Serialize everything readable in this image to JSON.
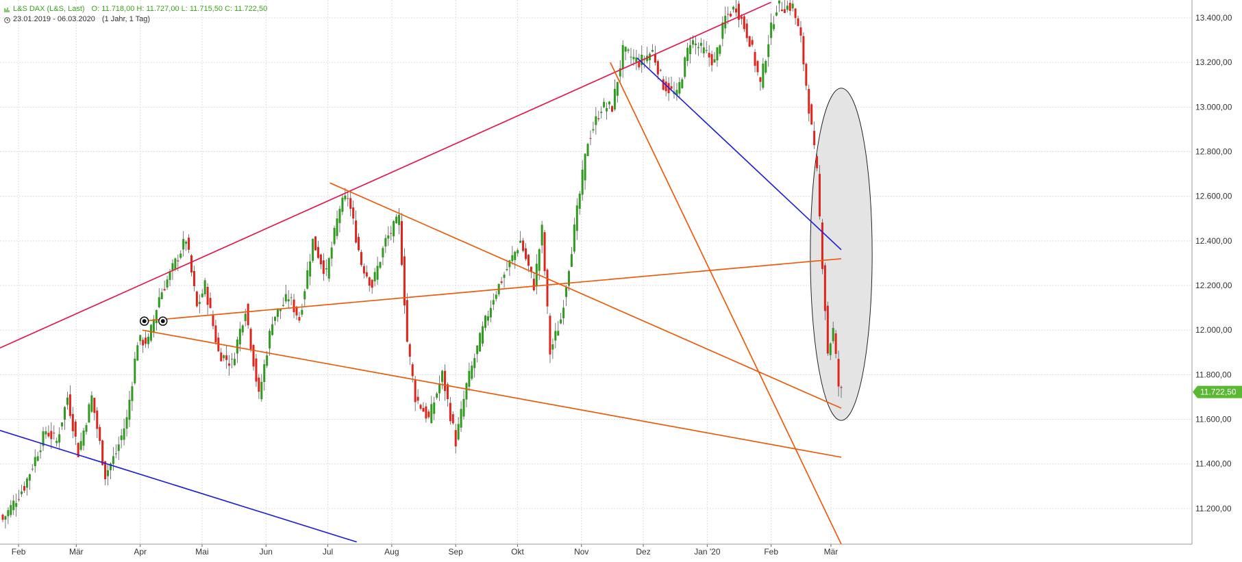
{
  "header": {
    "symbol": "L&S DAX (L&S, Last)",
    "ohlc": "O: 11.718,00  H: 11.727,00  L: 11.715,50  C: 11.722,50",
    "range": "23.01.2019 - 06.03.2020",
    "period": "(1 Jahr, 1 Tag)"
  },
  "chart_data": {
    "type": "candlestick",
    "x_tick_labels": [
      "Feb",
      "Mär",
      "Apr",
      "Mai",
      "Jun",
      "Jul",
      "Aug",
      "Sep",
      "Okt",
      "Nov",
      "Dez",
      "Jan '20",
      "Feb",
      "Mär"
    ],
    "y_ticks": [
      11200,
      11400,
      11600,
      11800,
      12000,
      12200,
      12400,
      12600,
      12800,
      13000,
      13200,
      13400
    ],
    "y_tick_labels": [
      "11.200,00",
      "11.400,00",
      "11.600,00",
      "11.800,00",
      "12.000,00",
      "12.200,00",
      "12.400,00",
      "12.600,00",
      "12.800,00",
      "13.000,00",
      "13.200,00",
      "13.400,00"
    ],
    "ylim": [
      11040,
      13480
    ],
    "last_price": 11722.5,
    "last_price_label": "11.722,50",
    "up_color": "#2e9a1e",
    "down_color": "#e0241c",
    "grid": true,
    "candle_anchors": [
      {
        "i": 0,
        "close": 11150
      },
      {
        "i": 8,
        "close": 11300
      },
      {
        "i": 16,
        "close": 11550
      },
      {
        "i": 20,
        "close": 11500
      },
      {
        "i": 24,
        "close": 11700
      },
      {
        "i": 28,
        "close": 11450
      },
      {
        "i": 33,
        "close": 11700
      },
      {
        "i": 38,
        "close": 11350
      },
      {
        "i": 42,
        "close": 11450
      },
      {
        "i": 46,
        "close": 11600
      },
      {
        "i": 50,
        "close": 11950
      },
      {
        "i": 54,
        "close": 11950
      },
      {
        "i": 58,
        "close": 12150
      },
      {
        "i": 62,
        "close": 12250
      },
      {
        "i": 68,
        "close": 12410
      },
      {
        "i": 72,
        "close": 12100
      },
      {
        "i": 75,
        "close": 12200
      },
      {
        "i": 80,
        "close": 11900
      },
      {
        "i": 85,
        "close": 11850
      },
      {
        "i": 90,
        "close": 12100
      },
      {
        "i": 95,
        "close": 11700
      },
      {
        "i": 100,
        "close": 12050
      },
      {
        "i": 106,
        "close": 12150
      },
      {
        "i": 110,
        "close": 12050
      },
      {
        "i": 115,
        "close": 12400
      },
      {
        "i": 120,
        "close": 12250
      },
      {
        "i": 125,
        "close": 12550
      },
      {
        "i": 128,
        "close": 12600
      },
      {
        "i": 133,
        "close": 12300
      },
      {
        "i": 137,
        "close": 12200
      },
      {
        "i": 142,
        "close": 12400
      },
      {
        "i": 147,
        "close": 12500
      },
      {
        "i": 150,
        "close": 11950
      },
      {
        "i": 153,
        "close": 11700
      },
      {
        "i": 158,
        "close": 11600
      },
      {
        "i": 163,
        "close": 11800
      },
      {
        "i": 168,
        "close": 11500
      },
      {
        "i": 172,
        "close": 11750
      },
      {
        "i": 178,
        "close": 12000
      },
      {
        "i": 182,
        "close": 12150
      },
      {
        "i": 188,
        "close": 12300
      },
      {
        "i": 192,
        "close": 12400
      },
      {
        "i": 197,
        "close": 12200
      },
      {
        "i": 200,
        "close": 12450
      },
      {
        "i": 203,
        "close": 11900
      },
      {
        "i": 207,
        "close": 12050
      },
      {
        "i": 212,
        "close": 12450
      },
      {
        "i": 217,
        "close": 12850
      },
      {
        "i": 222,
        "close": 13000
      },
      {
        "i": 226,
        "close": 13000
      },
      {
        "i": 230,
        "close": 13250
      },
      {
        "i": 236,
        "close": 13200
      },
      {
        "i": 241,
        "close": 13250
      },
      {
        "i": 245,
        "close": 13100
      },
      {
        "i": 250,
        "close": 13050
      },
      {
        "i": 255,
        "close": 13300
      },
      {
        "i": 260,
        "close": 13250
      },
      {
        "i": 264,
        "close": 13200
      },
      {
        "i": 268,
        "close": 13400
      },
      {
        "i": 272,
        "close": 13450
      },
      {
        "i": 277,
        "close": 13300
      },
      {
        "i": 281,
        "close": 13100
      },
      {
        "i": 284,
        "close": 13300
      },
      {
        "i": 287,
        "close": 13450
      },
      {
        "i": 293,
        "close": 13450
      },
      {
        "i": 296,
        "close": 13300
      },
      {
        "i": 299,
        "close": 13000
      },
      {
        "i": 302,
        "close": 12700
      },
      {
        "i": 304,
        "close": 12300
      },
      {
        "i": 306,
        "close": 11900
      },
      {
        "i": 308,
        "close": 12000
      },
      {
        "i": 310,
        "close": 11750
      },
      {
        "i": 311,
        "close": 11722.5
      }
    ],
    "trendlines": [
      {
        "color": "#e8174a",
        "from": [
          "2019-01-23",
          11920
        ],
        "to": [
          "2020-02-01",
          13470
        ]
      },
      {
        "color": "#2222dd",
        "from": [
          "2019-01-23",
          11550
        ],
        "to": [
          "2019-07-15",
          11050
        ]
      },
      {
        "color": "#2222dd",
        "from": [
          "2019-11-28",
          13220
        ],
        "to": [
          "2020-03-06",
          12360
        ]
      },
      {
        "color": "#ee5a0a",
        "from": [
          "2019-04-02",
          12040
        ],
        "to": [
          "2020-03-06",
          12320
        ]
      },
      {
        "color": "#ee5a0a",
        "from": [
          "2019-04-02",
          12000
        ],
        "to": [
          "2020-03-06",
          11430
        ]
      },
      {
        "color": "#ee5a0a",
        "from": [
          "2019-07-02",
          12660
        ],
        "to": [
          "2020-03-06",
          11650
        ]
      },
      {
        "color": "#ee5a0a",
        "from": [
          "2019-11-15",
          13200
        ],
        "to": [
          "2020-03-06",
          11040
        ]
      }
    ],
    "zone_ellipse": {
      "fill": "#e4e4e4",
      "stroke": "#222222",
      "cx": "2020-03-06",
      "cy": 12340,
      "y_top": 13080,
      "y_bottom": 11590,
      "left": "2020-02-20"
    }
  }
}
